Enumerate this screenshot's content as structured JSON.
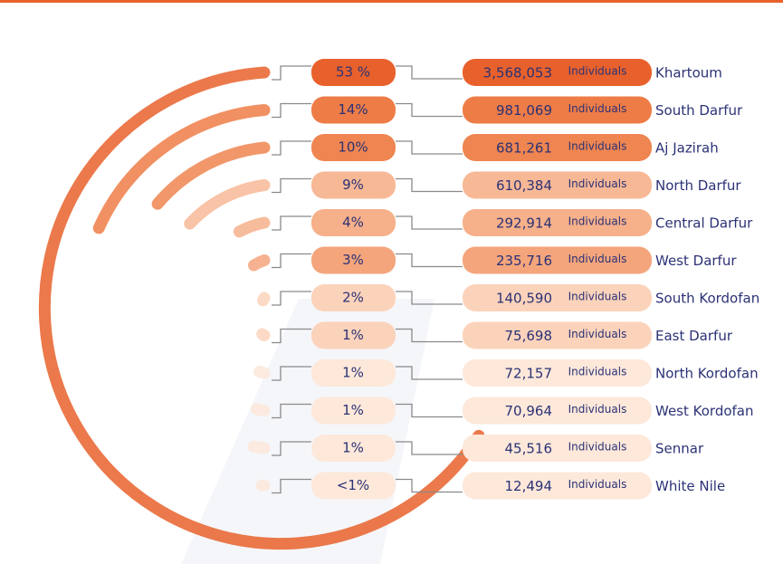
{
  "chart_data": {
    "type": "radial_bar",
    "categories": [
      "Khartoum",
      "South Darfur",
      "Aj Jazirah",
      "North Darfur",
      "Central Darfur",
      "West Darfur",
      "South Kordofan",
      "East Darfur",
      "North Kordofan",
      "West Kordofan",
      "Sennar",
      "White Nile"
    ],
    "values": [
      53,
      14,
      10,
      9,
      4,
      3,
      2,
      1,
      1,
      1,
      1,
      0.2
    ],
    "value_labels": [
      "53 %",
      "14%",
      "10%",
      "9%",
      "4%",
      "3%",
      "2%",
      "1%",
      "1%",
      "1%",
      "1%",
      "<1%"
    ],
    "counts": [
      3568053,
      981069,
      681261,
      610384,
      292914,
      235716,
      140590,
      75698,
      72157,
      70964,
      45516,
      12494
    ],
    "count_labels": [
      "3,568,053",
      "981,069",
      "681,261",
      "610,384",
      "292,914",
      "235,716",
      "140,590",
      "75,698",
      "72,157",
      "70,964",
      "45,516",
      "12,494"
    ],
    "unit": "Individuals",
    "colors": [
      "#e8612c",
      "#ee7c47",
      "#ef8550",
      "#f7b896",
      "#f6b08a",
      "#f4a57c",
      "#fbd3bb",
      "#fbd3bb",
      "#fde8da",
      "#fde8da",
      "#fde8da",
      "#fde8da"
    ]
  }
}
